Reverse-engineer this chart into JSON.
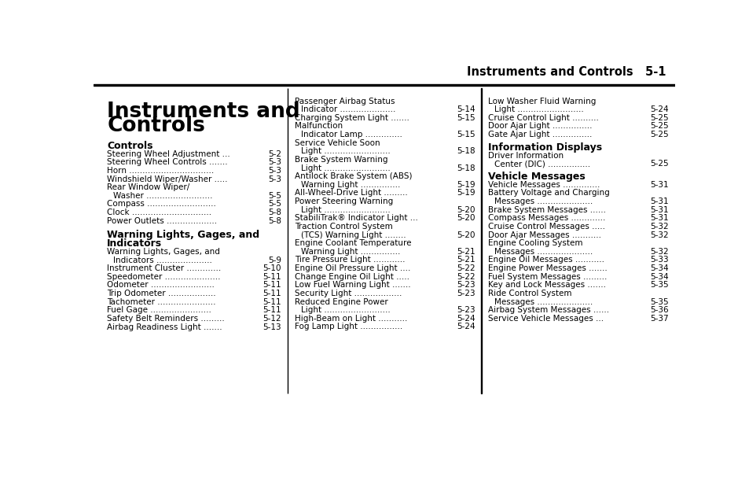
{
  "bg_color": "#ffffff",
  "text_color": "#000000",
  "header_line": "Instruments and Controls   5-1",
  "title_line1": "Instruments and",
  "title_line2": "Controls",
  "col1_section1_header": "Controls",
  "col1_section1": [
    [
      "Steering Wheel Adjustment ... ",
      "5-2"
    ],
    [
      "Steering Wheel Controls ....... ",
      "5-3"
    ],
    [
      "Horn ................................ ",
      "5-3"
    ],
    [
      "Windshield Wiper/Washer ..... ",
      "5-3"
    ],
    [
      "Rear Window Wiper/",
      ""
    ],
    [
      "  Washer ......................... ",
      "5-5"
    ],
    [
      "Compass .......................... ",
      "5-5"
    ],
    [
      "Clock .............................. ",
      "5-8"
    ],
    [
      "Power Outlets ................... ",
      "5-8"
    ]
  ],
  "col1_section2_header": "Warning Lights, Gages, and\nIndicators",
  "col1_section2": [
    [
      "Warning Lights, Gages, and",
      ""
    ],
    [
      "  Indicators ..................... ",
      "5-9"
    ],
    [
      "Instrument Cluster ............. ",
      "5-10"
    ],
    [
      "Speedometer ..................... ",
      "5-11"
    ],
    [
      "Odometer ........................ ",
      "5-11"
    ],
    [
      "Trip Odometer .................. ",
      "5-11"
    ],
    [
      "Tachometer ...................... ",
      "5-11"
    ],
    [
      "Fuel Gage ....................... ",
      "5-11"
    ],
    [
      "Safety Belt Reminders ......... ",
      "5-12"
    ],
    [
      "Airbag Readiness Light ....... ",
      "5-13"
    ]
  ],
  "col2_items": [
    [
      "Passenger Airbag Status",
      ""
    ],
    [
      "  Indicator ..................... ",
      "5-14"
    ],
    [
      "Charging System Light ....... ",
      "5-15"
    ],
    [
      "Malfunction",
      ""
    ],
    [
      "  Indicator Lamp .............. ",
      "5-15"
    ],
    [
      "Service Vehicle Soon",
      ""
    ],
    [
      "  Light ......................... ",
      "5-18"
    ],
    [
      "Brake System Warning",
      ""
    ],
    [
      "  Light ......................... ",
      "5-18"
    ],
    [
      "Antilock Brake System (ABS)",
      ""
    ],
    [
      "  Warning Light ............... ",
      "5-19"
    ],
    [
      "All-Wheel-Drive Light ......... ",
      "5-19"
    ],
    [
      "Power Steering Warning",
      ""
    ],
    [
      "  Light ......................... ",
      "5-20"
    ],
    [
      "StabiliTrak® Indicator Light ... ",
      "5-20"
    ],
    [
      "Traction Control System",
      ""
    ],
    [
      "  (TCS) Warning Light ........ ",
      "5-20"
    ],
    [
      "Engine Coolant Temperature",
      ""
    ],
    [
      "  Warning Light ............... ",
      "5-21"
    ],
    [
      "Tire Pressure Light ............ ",
      "5-21"
    ],
    [
      "Engine Oil Pressure Light .... ",
      "5-22"
    ],
    [
      "Change Engine Oil Light ..... ",
      "5-22"
    ],
    [
      "Low Fuel Warning Light ....... ",
      "5-23"
    ],
    [
      "Security Light .................. ",
      "5-23"
    ],
    [
      "Reduced Engine Power",
      ""
    ],
    [
      "  Light ......................... ",
      "5-23"
    ],
    [
      "High-Beam on Light ........... ",
      "5-24"
    ],
    [
      "Fog Lamp Light ................ ",
      "5-24"
    ]
  ],
  "col3_section0": [
    [
      "Low Washer Fluid Warning",
      ""
    ],
    [
      "  Light ......................... ",
      "5-24"
    ],
    [
      "Cruise Control Light .......... ",
      "5-25"
    ],
    [
      "Door Ajar Light ............... ",
      "5-25"
    ],
    [
      "Gate Ajar Light ............... ",
      "5-25"
    ]
  ],
  "col3_section1_header": "Information Displays",
  "col3_section1": [
    [
      "Driver Information",
      ""
    ],
    [
      "  Center (DIC) ................ ",
      "5-25"
    ]
  ],
  "col3_section2_header": "Vehicle Messages",
  "col3_section2": [
    [
      "Vehicle Messages .............. ",
      "5-31"
    ],
    [
      "Battery Voltage and Charging",
      ""
    ],
    [
      "  Messages ..................... ",
      "5-31"
    ],
    [
      "Brake System Messages ...... ",
      "5-31"
    ],
    [
      "Compass Messages ............. ",
      "5-31"
    ],
    [
      "Cruise Control Messages ..... ",
      "5-32"
    ],
    [
      "Door Ajar Messages ........... ",
      "5-32"
    ],
    [
      "Engine Cooling System",
      ""
    ],
    [
      "  Messages ..................... ",
      "5-32"
    ],
    [
      "Engine Oil Messages ........... ",
      "5-33"
    ],
    [
      "Engine Power Messages ....... ",
      "5-34"
    ],
    [
      "Fuel System Messages ......... ",
      "5-34"
    ],
    [
      "Key and Lock Messages ....... ",
      "5-35"
    ],
    [
      "Ride Control System",
      ""
    ],
    [
      "  Messages ..................... ",
      "5-35"
    ],
    [
      "Airbag System Messages ...... ",
      "5-36"
    ],
    [
      "Service Vehicle Messages ... ",
      "5-37"
    ]
  ]
}
